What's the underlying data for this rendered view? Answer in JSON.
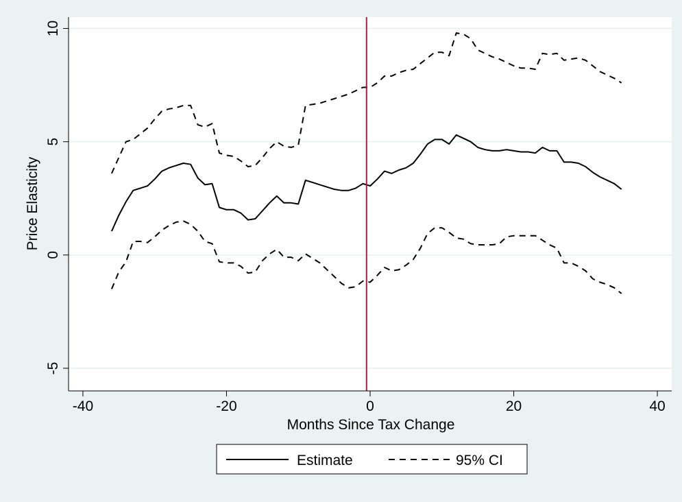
{
  "chart_data": {
    "type": "line",
    "title": "",
    "xlabel": "Months Since Tax Change",
    "ylabel": "Price Elasticity",
    "xlim": [
      -42,
      42
    ],
    "ylim": [
      -6,
      10.5
    ],
    "xticks": [
      -40,
      -20,
      0,
      20,
      40
    ],
    "yticks": [
      -5,
      0,
      5,
      10
    ],
    "xtick_labels": [
      "-40",
      "-20",
      "0",
      "20",
      "40"
    ],
    "ytick_labels": [
      "-5",
      "0",
      "5",
      "10"
    ],
    "grid": "horizontal",
    "vertical_line": {
      "x": -0.5,
      "color": "#b5173f"
    },
    "legend": {
      "position": "bottom",
      "entries": [
        {
          "label": "Estimate",
          "style": "solid"
        },
        {
          "label": "95% CI",
          "style": "dashed"
        }
      ]
    },
    "colors": {
      "background": "#eaf2f3",
      "plot_background": "#ffffff",
      "grid": "#eaf2f3",
      "line": "#000000"
    },
    "series": [
      {
        "name": "Estimate",
        "style": "solid",
        "x": [
          -36,
          -35,
          -34,
          -33,
          -32,
          -31,
          -30,
          -29,
          -28,
          -27,
          -26,
          -25,
          -24,
          -23,
          -22,
          -21,
          -20,
          -19,
          -18,
          -17,
          -16,
          -15,
          -14,
          -13,
          -12,
          -11,
          -10,
          -9,
          -8,
          -7,
          -6,
          -5,
          -4,
          -3,
          -2,
          -1,
          0,
          1,
          2,
          3,
          4,
          5,
          6,
          7,
          8,
          9,
          10,
          11,
          12,
          13,
          14,
          15,
          16,
          17,
          18,
          19,
          20,
          21,
          22,
          23,
          24,
          25,
          26,
          27,
          28,
          29,
          30,
          31,
          32,
          33,
          34,
          35
        ],
        "y": [
          1.05,
          1.75,
          2.35,
          2.85,
          2.95,
          3.05,
          3.35,
          3.7,
          3.85,
          3.95,
          4.05,
          4.0,
          3.4,
          3.1,
          3.15,
          2.1,
          2.0,
          2.0,
          1.85,
          1.55,
          1.6,
          1.95,
          2.3,
          2.6,
          2.3,
          2.3,
          2.25,
          3.3,
          3.2,
          3.1,
          3.0,
          2.9,
          2.85,
          2.85,
          2.95,
          3.15,
          3.05,
          3.35,
          3.7,
          3.6,
          3.75,
          3.85,
          4.05,
          4.45,
          4.9,
          5.1,
          5.1,
          4.9,
          5.3,
          5.15,
          5.0,
          4.75,
          4.65,
          4.6,
          4.6,
          4.65,
          4.6,
          4.55,
          4.55,
          4.5,
          4.75,
          4.6,
          4.6,
          4.1,
          4.1,
          4.05,
          3.9,
          3.65,
          3.45,
          3.3,
          3.15,
          2.9
        ]
      },
      {
        "name": "95% CI",
        "style": "dashed",
        "x": [
          -36,
          -35,
          -34,
          -33,
          -32,
          -31,
          -30,
          -29,
          -28,
          -27,
          -26,
          -25,
          -24,
          -23,
          -22,
          -21,
          -20,
          -19,
          -18,
          -17,
          -16,
          -15,
          -14,
          -13,
          -12,
          -11,
          -10,
          -9,
          -8,
          -7,
          -6,
          -5,
          -4,
          -3,
          -2,
          -1,
          0,
          1,
          2,
          3,
          4,
          5,
          6,
          7,
          8,
          9,
          10,
          11,
          12,
          13,
          14,
          15,
          16,
          17,
          18,
          19,
          20,
          21,
          22,
          23,
          24,
          25,
          26,
          27,
          28,
          29,
          30,
          31,
          32,
          33,
          34,
          35
        ],
        "y": [
          3.6,
          4.3,
          5.0,
          5.1,
          5.35,
          5.6,
          6.0,
          6.35,
          6.45,
          6.5,
          6.6,
          6.6,
          5.75,
          5.65,
          5.8,
          4.5,
          4.4,
          4.35,
          4.15,
          3.9,
          3.95,
          4.3,
          4.7,
          5.0,
          4.8,
          4.75,
          4.85,
          6.6,
          6.65,
          6.7,
          6.8,
          6.9,
          7.0,
          7.1,
          7.25,
          7.4,
          7.4,
          7.6,
          7.9,
          7.9,
          8.05,
          8.15,
          8.2,
          8.45,
          8.7,
          8.95,
          8.95,
          8.8,
          9.8,
          9.75,
          9.55,
          9.05,
          8.9,
          8.75,
          8.65,
          8.5,
          8.35,
          8.25,
          8.25,
          8.2,
          8.9,
          8.85,
          8.9,
          8.6,
          8.65,
          8.7,
          8.6,
          8.35,
          8.1,
          7.95,
          7.8,
          7.6
        ]
      },
      {
        "name": "95% CI",
        "style": "dashed",
        "x": [
          -36,
          -35,
          -34,
          -33,
          -32,
          -31,
          -30,
          -29,
          -28,
          -27,
          -26,
          -25,
          -24,
          -23,
          -22,
          -21,
          -20,
          -19,
          -18,
          -17,
          -16,
          -15,
          -14,
          -13,
          -12,
          -11,
          -10,
          -9,
          -8,
          -7,
          -6,
          -5,
          -4,
          -3,
          -2,
          -1,
          0,
          1,
          2,
          3,
          4,
          5,
          6,
          7,
          8,
          9,
          10,
          11,
          12,
          13,
          14,
          15,
          16,
          17,
          18,
          19,
          20,
          21,
          22,
          23,
          24,
          25,
          26,
          27,
          28,
          29,
          30,
          31,
          32,
          33,
          34,
          35
        ],
        "y": [
          -1.5,
          -0.75,
          -0.3,
          0.6,
          0.6,
          0.55,
          0.8,
          1.1,
          1.3,
          1.45,
          1.5,
          1.35,
          1.05,
          0.6,
          0.5,
          -0.3,
          -0.35,
          -0.35,
          -0.5,
          -0.8,
          -0.75,
          -0.25,
          0.05,
          0.25,
          -0.1,
          -0.1,
          -0.25,
          0.05,
          -0.15,
          -0.35,
          -0.65,
          -0.95,
          -1.25,
          -1.45,
          -1.4,
          -1.15,
          -1.2,
          -0.9,
          -0.55,
          -0.7,
          -0.65,
          -0.45,
          -0.2,
          0.3,
          0.95,
          1.2,
          1.2,
          1.0,
          0.75,
          0.7,
          0.5,
          0.45,
          0.45,
          0.45,
          0.5,
          0.8,
          0.85,
          0.85,
          0.85,
          0.85,
          0.65,
          0.45,
          0.3,
          -0.35,
          -0.35,
          -0.5,
          -0.7,
          -1.05,
          -1.2,
          -1.3,
          -1.45,
          -1.7
        ]
      }
    ]
  }
}
